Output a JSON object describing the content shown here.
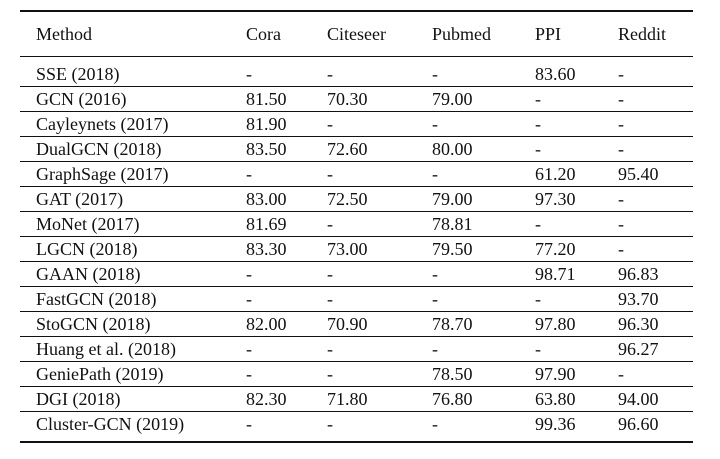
{
  "table": {
    "headers": [
      "Method",
      "Cora",
      "Citeseer",
      "Pubmed",
      "PPI",
      "Reddit"
    ],
    "rows": [
      [
        "SSE (2018)",
        "-",
        "-",
        "-",
        "83.60",
        "-"
      ],
      [
        "GCN (2016)",
        "81.50",
        "70.30",
        "79.00",
        "-",
        "-"
      ],
      [
        "Cayleynets (2017)",
        "81.90",
        "-",
        "-",
        "-",
        "-"
      ],
      [
        "DualGCN (2018)",
        "83.50",
        "72.60",
        "80.00",
        "-",
        "-"
      ],
      [
        "GraphSage (2017)",
        "-",
        "-",
        "-",
        "61.20",
        "95.40"
      ],
      [
        "GAT (2017)",
        "83.00",
        "72.50",
        "79.00",
        "97.30",
        "-"
      ],
      [
        "MoNet (2017)",
        "81.69",
        "-",
        "78.81",
        "-",
        "-"
      ],
      [
        "LGCN (2018)",
        "83.30",
        "73.00",
        "79.50",
        "77.20",
        "-"
      ],
      [
        "GAAN (2018)",
        "-",
        "-",
        "-",
        "98.71",
        "96.83"
      ],
      [
        "FastGCN (2018)",
        "-",
        "-",
        "-",
        "-",
        "93.70"
      ],
      [
        "StoGCN (2018)",
        "82.00",
        "70.90",
        "78.70",
        "97.80",
        "96.30"
      ],
      [
        "Huang et al. (2018)",
        "-",
        "-",
        "-",
        "-",
        "96.27"
      ],
      [
        "GeniePath (2019)",
        "-",
        "-",
        "78.50",
        "97.90",
        "-"
      ],
      [
        "DGI (2018)",
        "82.30",
        "71.80",
        "76.80",
        "63.80",
        "94.00"
      ],
      [
        "Cluster-GCN (2019)",
        "-",
        "-",
        "-",
        "99.36",
        "96.60"
      ]
    ]
  }
}
